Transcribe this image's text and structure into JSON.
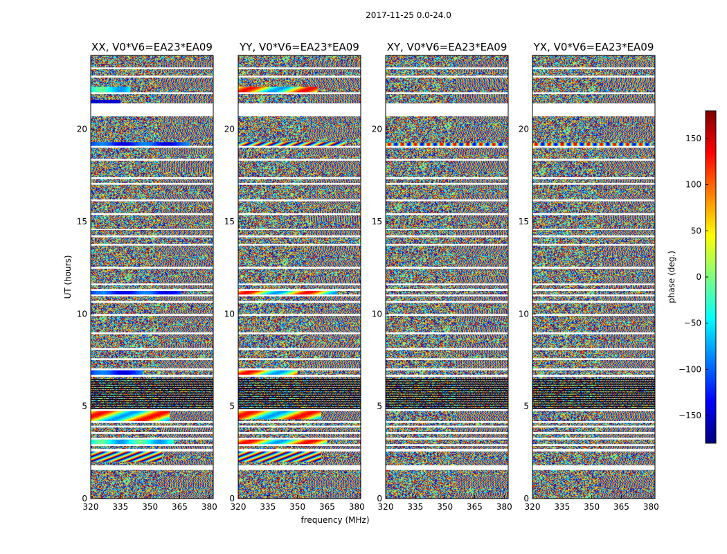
{
  "chart_data": {
    "type": "heatmap",
    "suptitle": "2017-11-25 0.0-24.0",
    "xlabel": "frequency (MHz)",
    "ylabel": "UT (hours)",
    "xlim": [
      320,
      382
    ],
    "ylim": [
      0,
      24
    ],
    "xticks": [
      320,
      335,
      350,
      365,
      380
    ],
    "yticks": [
      0,
      5,
      10,
      15,
      20
    ],
    "value_description": "visibility phase per frequency channel and time sample; fringe patterns appear across frequency",
    "flagged_time_ranges_hours": [
      [
        1.55,
        1.8
      ],
      [
        2.55,
        2.7
      ],
      [
        2.85,
        2.95
      ],
      [
        3.2,
        3.3
      ],
      [
        3.5,
        3.6
      ],
      [
        3.85,
        3.95
      ],
      [
        4.1,
        4.2
      ],
      [
        4.75,
        4.85
      ],
      [
        6.6,
        6.7
      ],
      [
        6.95,
        7.05
      ],
      [
        7.5,
        7.6
      ],
      [
        8.05,
        8.15
      ],
      [
        8.9,
        9.0
      ],
      [
        9.9,
        10.0
      ],
      [
        10.6,
        10.7
      ],
      [
        10.95,
        11.05
      ],
      [
        11.25,
        11.35
      ],
      [
        11.55,
        11.65
      ],
      [
        12.45,
        12.55
      ],
      [
        13.7,
        13.8
      ],
      [
        14.15,
        14.25
      ],
      [
        14.55,
        14.6
      ],
      [
        15.35,
        15.45
      ],
      [
        16.1,
        16.2
      ],
      [
        17.0,
        17.1
      ],
      [
        17.3,
        17.4
      ],
      [
        18.3,
        18.4
      ],
      [
        19.0,
        19.1
      ],
      [
        20.7,
        21.4
      ],
      [
        21.9,
        22.0
      ],
      [
        22.8,
        22.9
      ],
      [
        23.25,
        23.35
      ]
    ],
    "dense_flagged_band_hours": [
      4.85,
      6.5
    ],
    "panels": [
      {
        "title": "XX, V0*V6=EA23*EA09",
        "coherent_bands": [
          {
            "t0": 2.0,
            "t1": 2.55,
            "f1": 356,
            "kind": "rainbow"
          },
          {
            "t0": 2.95,
            "t1": 3.2,
            "f1": 362,
            "kind": "cyan"
          },
          {
            "t0": 4.2,
            "t1": 4.75,
            "f1": 360,
            "kind": "warm"
          },
          {
            "t0": 6.7,
            "t1": 6.95,
            "f1": 346,
            "kind": "blue"
          },
          {
            "t0": 11.05,
            "t1": 11.25,
            "f1": 366,
            "kind": "blue"
          },
          {
            "t0": 19.1,
            "t1": 19.3,
            "f1": 370,
            "kind": "blue"
          },
          {
            "t0": 21.4,
            "t1": 21.6,
            "f1": 335,
            "kind": "navy"
          },
          {
            "t0": 22.0,
            "t1": 22.3,
            "f1": 340,
            "kind": "cyan"
          }
        ]
      },
      {
        "title": "YY, V0*V6=EA23*EA09",
        "coherent_bands": [
          {
            "t0": 2.0,
            "t1": 2.55,
            "f1": 362,
            "kind": "rainbow"
          },
          {
            "t0": 2.95,
            "t1": 3.2,
            "f1": 365,
            "kind": "warm"
          },
          {
            "t0": 4.3,
            "t1": 4.75,
            "f1": 362,
            "kind": "warm"
          },
          {
            "t0": 6.7,
            "t1": 6.95,
            "f1": 350,
            "kind": "warm"
          },
          {
            "t0": 11.05,
            "t1": 11.3,
            "f1": 370,
            "kind": "warm"
          },
          {
            "t0": 19.1,
            "t1": 19.3,
            "f1": 374,
            "kind": "rainbow"
          },
          {
            "t0": 22.0,
            "t1": 22.3,
            "f1": 360,
            "kind": "warm"
          }
        ]
      },
      {
        "title": "XY, V0*V6=EA23*EA09",
        "coherent_bands": [
          {
            "t0": 19.1,
            "t1": 19.25,
            "f1": 380,
            "kind": "faint"
          }
        ]
      },
      {
        "title": "YX, V0*V6=EA23*EA09",
        "coherent_bands": [
          {
            "t0": 19.1,
            "t1": 19.25,
            "f1": 380,
            "kind": "faint"
          }
        ]
      }
    ],
    "colorbar": {
      "label": "phase (deg.)",
      "range": [
        -180,
        180
      ],
      "ticks": [
        150,
        100,
        50,
        0,
        -50,
        -100,
        -150
      ],
      "tick_labels": [
        "150",
        "100",
        "50",
        "0",
        "−50",
        "−100",
        "−150"
      ],
      "colormap": "jet"
    }
  }
}
